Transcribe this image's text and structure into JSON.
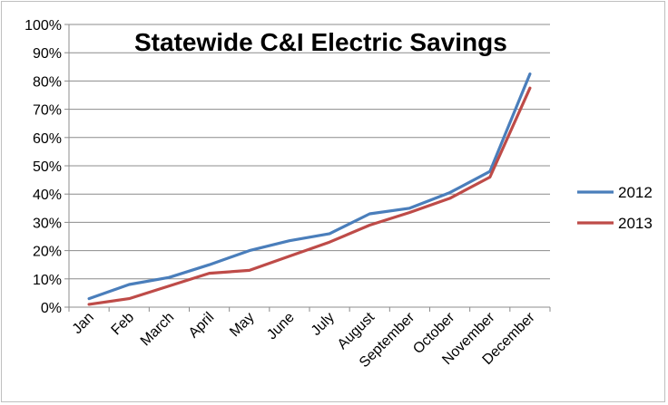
{
  "chart_data": {
    "type": "line",
    "title": "Statewide C&I Electric Savings",
    "xlabel": "",
    "ylabel": "",
    "ylim": [
      0,
      100
    ],
    "yticks": [
      "0%",
      "10%",
      "20%",
      "30%",
      "40%",
      "50%",
      "60%",
      "70%",
      "80%",
      "90%",
      "100%"
    ],
    "categories": [
      "Jan",
      "Feb",
      "March",
      "April",
      "May",
      "June",
      "July",
      "August",
      "September",
      "October",
      "November",
      "December"
    ],
    "grid": true,
    "legend_position": "right",
    "series": [
      {
        "name": "2012",
        "color": "#4a7ebb",
        "values": [
          3,
          8,
          10.5,
          15,
          20,
          23.5,
          26,
          33,
          35,
          40.5,
          48,
          82.5
        ]
      },
      {
        "name": "2013",
        "color": "#be4b48",
        "values": [
          1,
          3,
          7.5,
          12,
          13,
          18,
          23,
          29,
          33.5,
          38.5,
          46,
          77.5
        ]
      }
    ]
  }
}
